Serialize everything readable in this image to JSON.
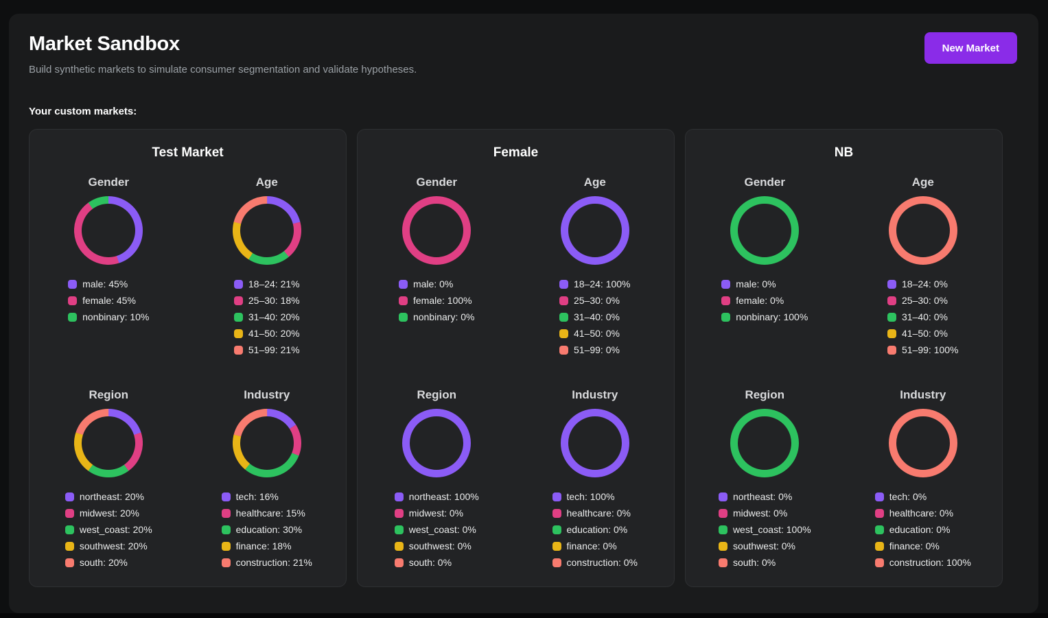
{
  "page": {
    "title": "Market Sandbox",
    "subtitle": "Build synthetic markets to simulate consumer segmentation and validate hypotheses.",
    "new_market_button": "New Market",
    "custom_markets_label": "Your custom markets:"
  },
  "palette": {
    "purple": "#8b5cf6",
    "pink": "#e03f84",
    "green": "#2dc25f",
    "yellow": "#e9b517",
    "salmon": "#f87b6f",
    "accent": "#8a2ce8"
  },
  "markets": [
    {
      "name": "Test Market",
      "charts": [
        {
          "title": "Gender",
          "type": "donut",
          "segments": [
            {
              "label": "male",
              "value": 45,
              "color": "purple"
            },
            {
              "label": "female",
              "value": 45,
              "color": "pink"
            },
            {
              "label": "nonbinary",
              "value": 10,
              "color": "green"
            }
          ]
        },
        {
          "title": "Age",
          "type": "donut",
          "segments": [
            {
              "label": "18–24",
              "value": 21,
              "color": "purple"
            },
            {
              "label": "25–30",
              "value": 18,
              "color": "pink"
            },
            {
              "label": "31–40",
              "value": 20,
              "color": "green"
            },
            {
              "label": "41–50",
              "value": 20,
              "color": "yellow"
            },
            {
              "label": "51–99",
              "value": 21,
              "color": "salmon"
            }
          ]
        },
        {
          "title": "Region",
          "type": "donut",
          "segments": [
            {
              "label": "northeast",
              "value": 20,
              "color": "purple"
            },
            {
              "label": "midwest",
              "value": 20,
              "color": "pink"
            },
            {
              "label": "west_coast",
              "value": 20,
              "color": "green"
            },
            {
              "label": "southwest",
              "value": 20,
              "color": "yellow"
            },
            {
              "label": "south",
              "value": 20,
              "color": "salmon"
            }
          ]
        },
        {
          "title": "Industry",
          "type": "donut",
          "segments": [
            {
              "label": "tech",
              "value": 16,
              "color": "purple"
            },
            {
              "label": "healthcare",
              "value": 15,
              "color": "pink"
            },
            {
              "label": "education",
              "value": 30,
              "color": "green"
            },
            {
              "label": "finance",
              "value": 18,
              "color": "yellow"
            },
            {
              "label": "construction",
              "value": 21,
              "color": "salmon"
            }
          ]
        }
      ]
    },
    {
      "name": "Female",
      "charts": [
        {
          "title": "Gender",
          "type": "donut",
          "segments": [
            {
              "label": "male",
              "value": 0,
              "color": "purple"
            },
            {
              "label": "female",
              "value": 100,
              "color": "pink"
            },
            {
              "label": "nonbinary",
              "value": 0,
              "color": "green"
            }
          ]
        },
        {
          "title": "Age",
          "type": "donut",
          "segments": [
            {
              "label": "18–24",
              "value": 100,
              "color": "purple"
            },
            {
              "label": "25–30",
              "value": 0,
              "color": "pink"
            },
            {
              "label": "31–40",
              "value": 0,
              "color": "green"
            },
            {
              "label": "41–50",
              "value": 0,
              "color": "yellow"
            },
            {
              "label": "51–99",
              "value": 0,
              "color": "salmon"
            }
          ]
        },
        {
          "title": "Region",
          "type": "donut",
          "segments": [
            {
              "label": "northeast",
              "value": 100,
              "color": "purple"
            },
            {
              "label": "midwest",
              "value": 0,
              "color": "pink"
            },
            {
              "label": "west_coast",
              "value": 0,
              "color": "green"
            },
            {
              "label": "southwest",
              "value": 0,
              "color": "yellow"
            },
            {
              "label": "south",
              "value": 0,
              "color": "salmon"
            }
          ]
        },
        {
          "title": "Industry",
          "type": "donut",
          "segments": [
            {
              "label": "tech",
              "value": 100,
              "color": "purple"
            },
            {
              "label": "healthcare",
              "value": 0,
              "color": "pink"
            },
            {
              "label": "education",
              "value": 0,
              "color": "green"
            },
            {
              "label": "finance",
              "value": 0,
              "color": "yellow"
            },
            {
              "label": "construction",
              "value": 0,
              "color": "salmon"
            }
          ]
        }
      ]
    },
    {
      "name": "NB",
      "charts": [
        {
          "title": "Gender",
          "type": "donut",
          "segments": [
            {
              "label": "male",
              "value": 0,
              "color": "purple"
            },
            {
              "label": "female",
              "value": 0,
              "color": "pink"
            },
            {
              "label": "nonbinary",
              "value": 100,
              "color": "green"
            }
          ]
        },
        {
          "title": "Age",
          "type": "donut",
          "segments": [
            {
              "label": "18–24",
              "value": 0,
              "color": "purple"
            },
            {
              "label": "25–30",
              "value": 0,
              "color": "pink"
            },
            {
              "label": "31–40",
              "value": 0,
              "color": "green"
            },
            {
              "label": "41–50",
              "value": 0,
              "color": "yellow"
            },
            {
              "label": "51–99",
              "value": 100,
              "color": "salmon"
            }
          ]
        },
        {
          "title": "Region",
          "type": "donut",
          "segments": [
            {
              "label": "northeast",
              "value": 0,
              "color": "purple"
            },
            {
              "label": "midwest",
              "value": 0,
              "color": "pink"
            },
            {
              "label": "west_coast",
              "value": 100,
              "color": "green"
            },
            {
              "label": "southwest",
              "value": 0,
              "color": "yellow"
            },
            {
              "label": "south",
              "value": 0,
              "color": "salmon"
            }
          ]
        },
        {
          "title": "Industry",
          "type": "donut",
          "segments": [
            {
              "label": "tech",
              "value": 0,
              "color": "purple"
            },
            {
              "label": "healthcare",
              "value": 0,
              "color": "pink"
            },
            {
              "label": "education",
              "value": 0,
              "color": "green"
            },
            {
              "label": "finance",
              "value": 0,
              "color": "yellow"
            },
            {
              "label": "construction",
              "value": 100,
              "color": "salmon"
            }
          ]
        }
      ]
    }
  ]
}
